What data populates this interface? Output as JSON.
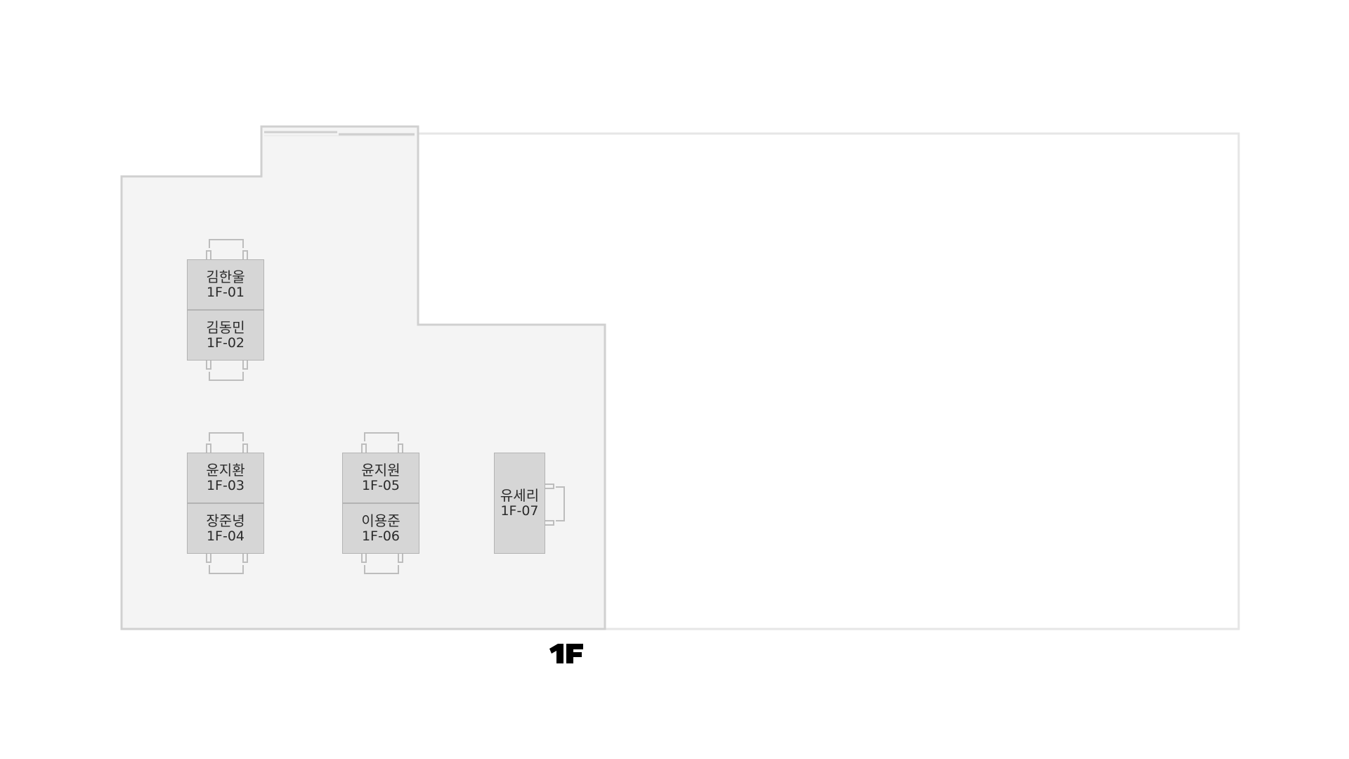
{
  "floor": {
    "label": "1F"
  },
  "seats": [
    {
      "name": "김한울",
      "id": "1F-01"
    },
    {
      "name": "김동민",
      "id": "1F-02"
    },
    {
      "name": "윤지환",
      "id": "1F-03"
    },
    {
      "name": "장준녕",
      "id": "1F-04"
    },
    {
      "name": "윤지원",
      "id": "1F-05"
    },
    {
      "name": "이용준",
      "id": "1F-06"
    },
    {
      "name": "유세리",
      "id": "1F-07"
    }
  ],
  "colors": {
    "room_fill": "#f4f4f4",
    "wall": "#d0d0d0",
    "desk": "#d6d6d6"
  }
}
